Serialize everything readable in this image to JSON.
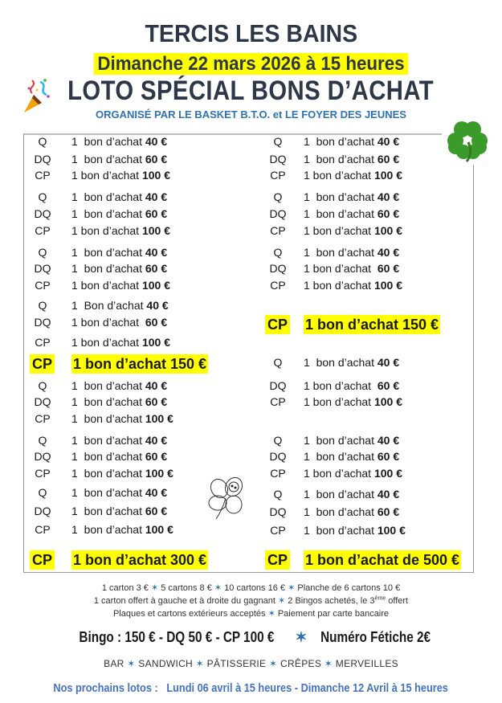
{
  "header": {
    "town": "TERCIS LES BAINS",
    "date": "Dimanche 22 mars 2026 à 15 heures",
    "title": "LOTO SPÉCIAL BONS D’ACHAT",
    "organizer": "ORGANISÉ PAR LE BASKET B.T.O.  et  LE FOYER DES JEUNES"
  },
  "colors": {
    "highlight": "#ffff00",
    "blue": "#2e74b5",
    "title": "#2d3748"
  },
  "icons": [
    "party-popper-icon",
    "four-leaf-clover-icon",
    "ladybug-clover-icon"
  ],
  "left_column": [
    {
      "label": "Q",
      "text": "1  bon d’achat ",
      "amount": "40 €"
    },
    {
      "label": "DQ",
      "text": "1  bon d’achat ",
      "amount": "60 €"
    },
    {
      "label": "CP",
      "text": "1 bon d’achat ",
      "amount": "100 €"
    },
    {
      "label": "Q",
      "text": "1  bon d’achat ",
      "amount": "40 €"
    },
    {
      "label": "DQ",
      "text": "1  bon d’achat ",
      "amount": "60 €"
    },
    {
      "label": "CP",
      "text": "1 bon d’achat ",
      "amount": "100 €"
    },
    {
      "label": "Q",
      "text": "1  bon d’achat ",
      "amount": "40 €"
    },
    {
      "label": "DQ",
      "text": "1  bon d’achat ",
      "amount": "60 €"
    },
    {
      "label": "CP",
      "text": "1 bon d’achat ",
      "amount": "100 €"
    },
    {
      "label": "Q",
      "text": "1  Bon d’achat ",
      "amount": "40 €"
    },
    {
      "label": "DQ",
      "text": "1 bon d’achat  ",
      "amount": "60 €"
    },
    {
      "label": "CP",
      "text": "1 bon d’achat ",
      "amount": "100 €"
    },
    {
      "label": "CP",
      "text": "1 bon d’achat 150 €",
      "amount": "",
      "big": true
    },
    {
      "label": "Q",
      "text": "1  bon d’achat ",
      "amount": "40 €"
    },
    {
      "label": "DQ",
      "text": "1  bon d’achat ",
      "amount": "60 €"
    },
    {
      "label": "CP",
      "text": "1  bon d’achat ",
      "amount": "100 €"
    },
    {
      "label": "Q",
      "text": "1  bon d’achat ",
      "amount": "40 €"
    },
    {
      "label": "DQ",
      "text": "1  bon d’achat ",
      "amount": "60 €"
    },
    {
      "label": "CP",
      "text": "1  bon d’achat ",
      "amount": "100 €"
    },
    {
      "label": "Q",
      "text": "1  bon d’achat ",
      "amount": "40 €"
    },
    {
      "label": "DQ",
      "text": "1  bon d’achat ",
      "amount": "60 €"
    },
    {
      "label": "CP",
      "text": "1  bon d’achat ",
      "amount": "100 €"
    },
    {
      "label": "CP",
      "text": "1 bon d’achat 300 €",
      "amount": "",
      "big": true
    }
  ],
  "right_column": [
    {
      "label": "Q",
      "text": "1  bon d’achat ",
      "amount": "40 €"
    },
    {
      "label": "DQ",
      "text": "1  bon d’achat ",
      "amount": "60 €"
    },
    {
      "label": "CP",
      "text": "1 bon d’achat ",
      "amount": "100 €"
    },
    {
      "label": "Q",
      "text": "1  bon d’achat ",
      "amount": "40 €"
    },
    {
      "label": "DQ",
      "text": "1  bon d’achat ",
      "amount": "60 €"
    },
    {
      "label": "CP",
      "text": "1 bon d’achat ",
      "amount": "100 €"
    },
    {
      "label": "Q",
      "text": "1  bon d’achat ",
      "amount": "40 €"
    },
    {
      "label": "DQ",
      "text": "1 bon d’achat  ",
      "amount": "60 €"
    },
    {
      "label": "CP",
      "text": "1 bon d’achat ",
      "amount": "100 €"
    },
    {
      "label": "CP",
      "text": "1 bon d’achat 150 €",
      "amount": "",
      "big": true
    },
    {
      "label": "Q",
      "text": "1  bon d’achat ",
      "amount": "40 €"
    },
    {
      "label": "DQ",
      "text": "1 bon d’achat  ",
      "amount": "60 €"
    },
    {
      "label": "CP",
      "text": "1 bon d’achat ",
      "amount": "100 €"
    },
    {
      "label": "Q",
      "text": "1  bon d’achat ",
      "amount": "40 €"
    },
    {
      "label": "DQ",
      "text": "1  bon d’achat ",
      "amount": "60 €"
    },
    {
      "label": "CP",
      "text": "1 bon d’achat ",
      "amount": "100 €"
    },
    {
      "label": "Q",
      "text": "1  bon d’achat ",
      "amount": "40 €"
    },
    {
      "label": "DQ",
      "text": "1  bon d’achat ",
      "amount": "60 €"
    },
    {
      "label": "CP",
      "text": "1  bon d’achat ",
      "amount": "100 €"
    },
    {
      "label": "CP",
      "text": "1 bon d’achat de 500 €",
      "amount": "",
      "big": true
    }
  ],
  "prices": {
    "line1": [
      "1 carton 3 €",
      "5 cartons 8 €",
      "10 cartons 16 €",
      "Planche de 6 cartons 10 €"
    ],
    "line2a": "1 carton offert à gauche et à droite du gagnant",
    "line2b": "2 Bingos achetés, le 3",
    "line2sup": "ème",
    "line2c": " offert",
    "line3": [
      "Plaques et cartons extérieurs acceptés",
      "Paiement par carte bancaire"
    ],
    "separator": "✶"
  },
  "bingo": {
    "main": "Bingo : 150 € - DQ 50 € - CP 100 €",
    "fetiche": "Numéro Fétiche 2€"
  },
  "buvette": [
    "BAR",
    "SANDWICH",
    "PÂTISSERIE",
    "CRÊPES",
    "MERVEILLES"
  ],
  "next_lotos": "Nos prochains lotos :   Lundi 06 avril à 15 heures - Dimanche 12 Avril à 15 heures"
}
